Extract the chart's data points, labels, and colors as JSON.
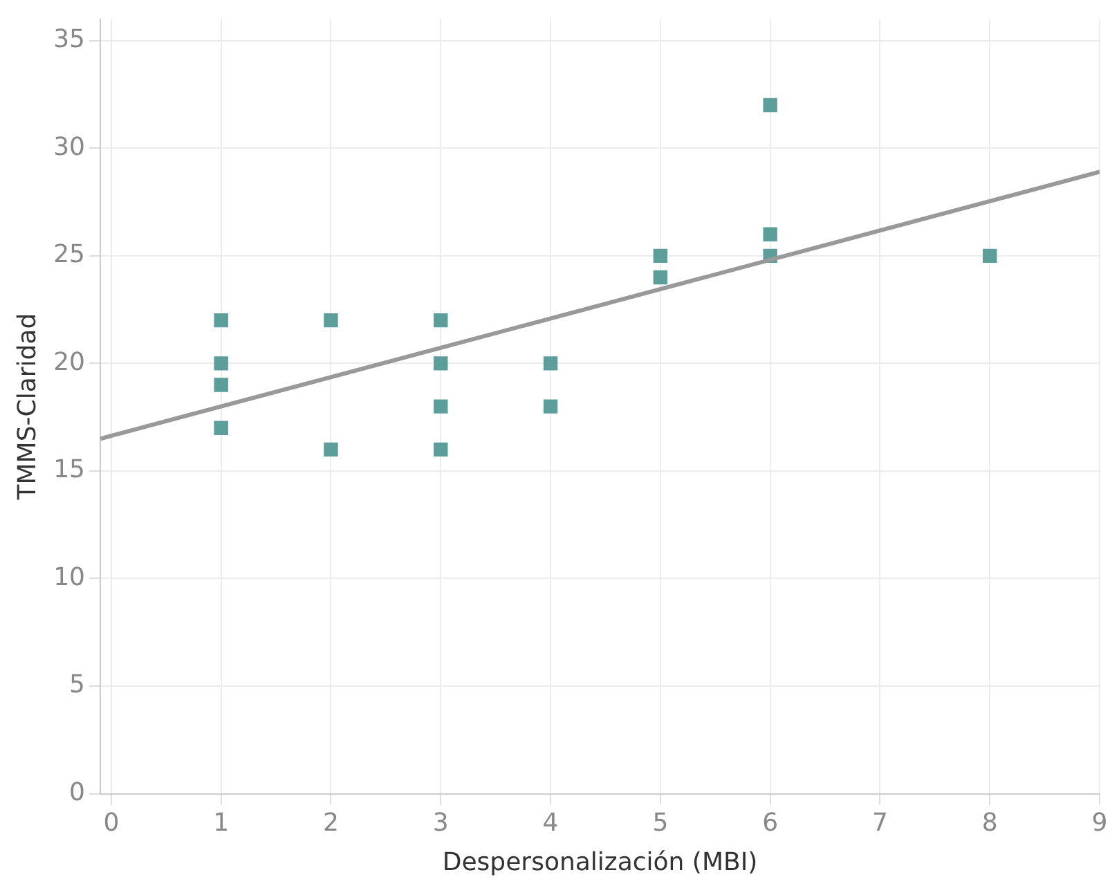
{
  "chart_data": {
    "type": "scatter",
    "xlabel": "Despersonalización (MBI)",
    "ylabel": "TMMS-Claridad",
    "xlim": [
      -0.1,
      9
    ],
    "xticks": [
      0,
      1,
      2,
      3,
      4,
      5,
      6,
      7,
      8,
      9
    ],
    "ylim": [
      0,
      36
    ],
    "yticks": [
      0,
      5,
      10,
      15,
      20,
      25,
      30,
      35
    ],
    "grid": true,
    "legend": false,
    "marker": "square",
    "series": [
      {
        "color": "#5b9e9a",
        "x": [
          1,
          1,
          1,
          1,
          2,
          2,
          3,
          3,
          3,
          3,
          4,
          4,
          5,
          5,
          6,
          6,
          6,
          8
        ],
        "values": [
          22,
          20,
          19,
          17,
          22,
          16,
          22,
          20,
          18,
          16,
          20,
          18,
          25,
          24,
          32,
          26,
          25,
          25
        ]
      },
      {
        "type": "line",
        "color": "#999999",
        "marker": "none",
        "x": [
          -0.1,
          9
        ],
        "values": [
          16.5,
          28.9
        ]
      }
    ]
  }
}
